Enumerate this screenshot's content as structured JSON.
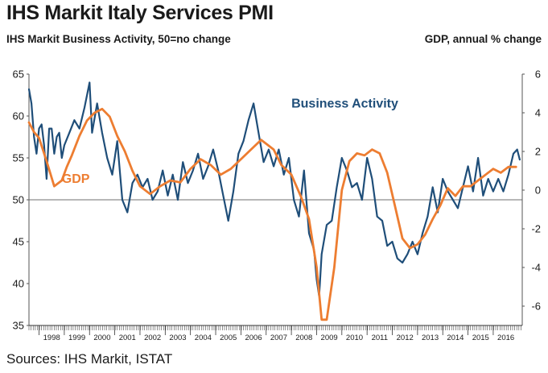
{
  "title": "IHS Markit Italy Services PMI",
  "left_axis_label": "IHS Markit Business Activity, 50=no change",
  "right_axis_label": "GDP, annual % change",
  "source": "Sources: IHS Markit, ISTAT",
  "colors": {
    "business_activity": "#1f4e79",
    "gdp": "#ed7d31",
    "reference": "#8c8c8c"
  },
  "chart_data": {
    "type": "line",
    "x_start": 1997.6,
    "x_end": 2017.15,
    "years": [
      "1998",
      "1999",
      "2000",
      "2001",
      "2002",
      "2003",
      "2004",
      "2005",
      "2006",
      "2007",
      "2008",
      "2009",
      "2010",
      "2011",
      "2012",
      "2013",
      "2014",
      "2015",
      "2016"
    ],
    "left_axis": {
      "min": 35,
      "max": 65,
      "ticks": [
        35,
        40,
        45,
        50,
        55,
        60,
        65
      ],
      "reference_line": 50
    },
    "right_axis": {
      "min": -7,
      "max": 6,
      "ticks": [
        -6,
        -4,
        -2,
        0,
        2,
        4,
        6
      ]
    },
    "series": [
      {
        "name": "Business Activity",
        "axis": "left",
        "x": [
          1997.6,
          1997.7,
          1997.8,
          1997.9,
          1998.0,
          1998.1,
          1998.2,
          1998.3,
          1998.4,
          1998.5,
          1998.6,
          1998.7,
          1998.8,
          1998.9,
          1999.0,
          1999.2,
          1999.4,
          1999.6,
          1999.8,
          2000.0,
          2000.1,
          2000.3,
          2000.5,
          2000.7,
          2000.9,
          2001.1,
          2001.3,
          2001.5,
          2001.7,
          2001.9,
          2002.1,
          2002.3,
          2002.5,
          2002.7,
          2002.9,
          2003.1,
          2003.3,
          2003.5,
          2003.7,
          2003.9,
          2004.1,
          2004.3,
          2004.5,
          2004.7,
          2004.9,
          2005.1,
          2005.3,
          2005.5,
          2005.7,
          2005.9,
          2006.1,
          2006.3,
          2006.5,
          2006.7,
          2006.9,
          2007.1,
          2007.3,
          2007.5,
          2007.7,
          2007.9,
          2008.1,
          2008.3,
          2008.5,
          2008.7,
          2008.9,
          2009.0,
          2009.1,
          2009.2,
          2009.4,
          2009.6,
          2009.8,
          2010.0,
          2010.2,
          2010.4,
          2010.6,
          2010.8,
          2011.0,
          2011.2,
          2011.4,
          2011.6,
          2011.8,
          2012.0,
          2012.2,
          2012.4,
          2012.6,
          2012.8,
          2013.0,
          2013.2,
          2013.4,
          2013.6,
          2013.8,
          2014.0,
          2014.2,
          2014.4,
          2014.6,
          2014.8,
          2015.0,
          2015.2,
          2015.4,
          2015.6,
          2015.8,
          2016.0,
          2016.2,
          2016.4,
          2016.6,
          2016.8,
          2016.95,
          2017.05
        ],
        "values": [
          63.2,
          61.5,
          57.5,
          55.5,
          58.5,
          59,
          56.5,
          52.5,
          58.5,
          58.5,
          55.5,
          57.5,
          58,
          55,
          56.5,
          58,
          59.5,
          58.5,
          61,
          64,
          58,
          61.5,
          58,
          55,
          53,
          57,
          50,
          48.5,
          52,
          53,
          51.5,
          52.5,
          50,
          51,
          53.5,
          50.5,
          53,
          50,
          54.5,
          52,
          53.5,
          55.5,
          52.5,
          54,
          56,
          53.5,
          50.5,
          47.5,
          51,
          55.5,
          57,
          59.5,
          61.5,
          58,
          54.5,
          56,
          54,
          56,
          53,
          55,
          50,
          48,
          53.5,
          46,
          44,
          40.5,
          38.5,
          43.5,
          47,
          47.5,
          51.5,
          55,
          53.5,
          51.5,
          52,
          50,
          55,
          52.5,
          48,
          47.5,
          44.5,
          45,
          43,
          42.5,
          43.5,
          45,
          43.5,
          46,
          48,
          51.5,
          48.5,
          52.5,
          51,
          50,
          49,
          51.5,
          54,
          51,
          55,
          50.5,
          52.5,
          51,
          52.5,
          51,
          53,
          55.5,
          56,
          54.8
        ]
      },
      {
        "name": "GDP",
        "axis": "right",
        "x": [
          1997.6,
          1997.8,
          1998.0,
          1998.3,
          1998.6,
          1998.9,
          1999.1,
          1999.3,
          1999.6,
          1999.9,
          2000.2,
          2000.5,
          2000.8,
          2001.1,
          2001.4,
          2001.7,
          2002.0,
          2002.4,
          2002.8,
          2003.2,
          2003.6,
          2004.0,
          2004.4,
          2004.8,
          2005.2,
          2005.6,
          2006.0,
          2006.4,
          2006.8,
          2007.0,
          2007.3,
          2007.6,
          2008.0,
          2008.4,
          2008.7,
          2009.0,
          2009.2,
          2009.4,
          2009.7,
          2010.0,
          2010.3,
          2010.6,
          2010.9,
          2011.2,
          2011.5,
          2011.8,
          2012.1,
          2012.4,
          2012.7,
          2013.0,
          2013.3,
          2013.6,
          2013.9,
          2014.2,
          2014.5,
          2014.8,
          2015.1,
          2015.4,
          2015.7,
          2016.0,
          2016.3,
          2016.6,
          2016.9
        ],
        "values": [
          3.5,
          3.0,
          2.7,
          1.5,
          0.2,
          0.5,
          1.2,
          1.8,
          2.8,
          3.6,
          4.0,
          4.2,
          3.8,
          2.8,
          2.0,
          1.0,
          0.2,
          -0.2,
          0.2,
          0.5,
          0.4,
          1.1,
          1.6,
          1.3,
          0.8,
          1.1,
          1.6,
          2.1,
          2.6,
          2.4,
          2.1,
          1.3,
          0.8,
          -0.4,
          -1.5,
          -4.0,
          -6.7,
          -6.7,
          -4.0,
          0.0,
          1.5,
          1.9,
          1.8,
          2.1,
          1.9,
          0.9,
          -0.8,
          -2.5,
          -3.0,
          -2.8,
          -2.3,
          -1.5,
          -0.8,
          0.1,
          -0.3,
          0.2,
          0.2,
          0.5,
          0.8,
          1.1,
          0.9,
          1.2,
          1.2
        ]
      }
    ],
    "annotations": [
      {
        "text": "Business Activity",
        "series": "Business Activity",
        "near_x": 2008.0,
        "near_y": 61.0
      },
      {
        "text": "GDP",
        "series": "GDP",
        "near_x": 1998.9,
        "near_y": 52.0
      }
    ]
  }
}
